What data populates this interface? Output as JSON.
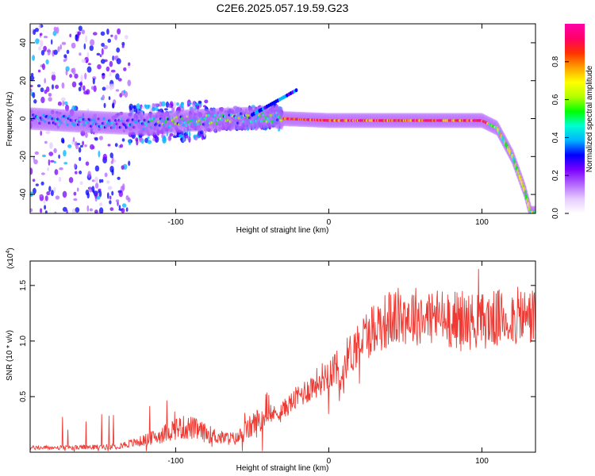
{
  "page_title": "C2E6.2025.057.19.59.G23",
  "chart_data": [
    {
      "type": "heatmap",
      "xlabel": "Height of straight line (km)",
      "ylabel": "Frequency (Hz)",
      "xlim": [
        -195,
        135
      ],
      "ylim": [
        -50,
        50
      ],
      "xticks": [
        -100,
        0,
        100
      ],
      "yticks": [
        -40,
        -20,
        0,
        20,
        40
      ],
      "colorbar": {
        "label": "Normalized spectral amplitude",
        "range": [
          0,
          1
        ],
        "ticks": [
          0.0,
          0.2,
          0.4,
          0.6,
          0.8
        ],
        "colors": [
          "#ffffff",
          "#e6ccff",
          "#b366ff",
          "#7a00ff",
          "#0000ff",
          "#00b4ff",
          "#00ffd2",
          "#00ff00",
          "#b4ff00",
          "#ffff00",
          "#ffa000",
          "#ff3200",
          "#ff0066",
          "#ff00aa"
        ]
      },
      "ridge": [
        {
          "x": -195,
          "y": 0
        },
        {
          "x": -150,
          "y": -2
        },
        {
          "x": -120,
          "y": -3
        },
        {
          "x": -90,
          "y": -1
        },
        {
          "x": -60,
          "y": 0
        },
        {
          "x": -35,
          "y": 1
        },
        {
          "x": -30,
          "y": 0
        },
        {
          "x": 0,
          "y": -1
        },
        {
          "x": 50,
          "y": -1
        },
        {
          "x": 100,
          "y": -1
        },
        {
          "x": 110,
          "y": -5
        },
        {
          "x": 120,
          "y": -20
        },
        {
          "x": 128,
          "y": -38
        },
        {
          "x": 132,
          "y": -50
        }
      ]
    },
    {
      "type": "line",
      "color": "#ee3a33",
      "xlabel": "Height of straight line (km)",
      "ylabel": "SNR (10 * v/v)",
      "yscale_label": "(x10",
      "yscale_exp": "4",
      "scale_factor": 10000,
      "xlim": [
        -195,
        135
      ],
      "ylim": [
        0,
        1.72
      ],
      "xticks": [
        -100,
        0,
        100
      ],
      "yticks": [
        0.5,
        1.0,
        1.5
      ],
      "ytick_labels": [
        "0.5",
        "1.0",
        "1.5"
      ],
      "envelope": [
        {
          "x": -195,
          "y": 0.04
        },
        {
          "x": -170,
          "y": 0.04
        },
        {
          "x": -140,
          "y": 0.05
        },
        {
          "x": -125,
          "y": 0.09
        },
        {
          "x": -110,
          "y": 0.15
        },
        {
          "x": -100,
          "y": 0.22
        },
        {
          "x": -90,
          "y": 0.22
        },
        {
          "x": -80,
          "y": 0.17
        },
        {
          "x": -70,
          "y": 0.13
        },
        {
          "x": -60,
          "y": 0.12
        },
        {
          "x": -50,
          "y": 0.24
        },
        {
          "x": -40,
          "y": 0.32
        },
        {
          "x": -30,
          "y": 0.38
        },
        {
          "x": -20,
          "y": 0.5
        },
        {
          "x": -10,
          "y": 0.6
        },
        {
          "x": 0,
          "y": 0.72
        },
        {
          "x": 10,
          "y": 0.82
        },
        {
          "x": 15,
          "y": 0.9
        },
        {
          "x": 20,
          "y": 1.0
        },
        {
          "x": 30,
          "y": 1.13
        },
        {
          "x": 40,
          "y": 1.2
        },
        {
          "x": 50,
          "y": 1.23
        },
        {
          "x": 60,
          "y": 1.23
        },
        {
          "x": 70,
          "y": 1.22
        },
        {
          "x": 80,
          "y": 1.2
        },
        {
          "x": 90,
          "y": 1.18
        },
        {
          "x": 100,
          "y": 1.18
        },
        {
          "x": 110,
          "y": 1.2
        },
        {
          "x": 120,
          "y": 1.22
        },
        {
          "x": 135,
          "y": 1.22
        }
      ]
    }
  ]
}
